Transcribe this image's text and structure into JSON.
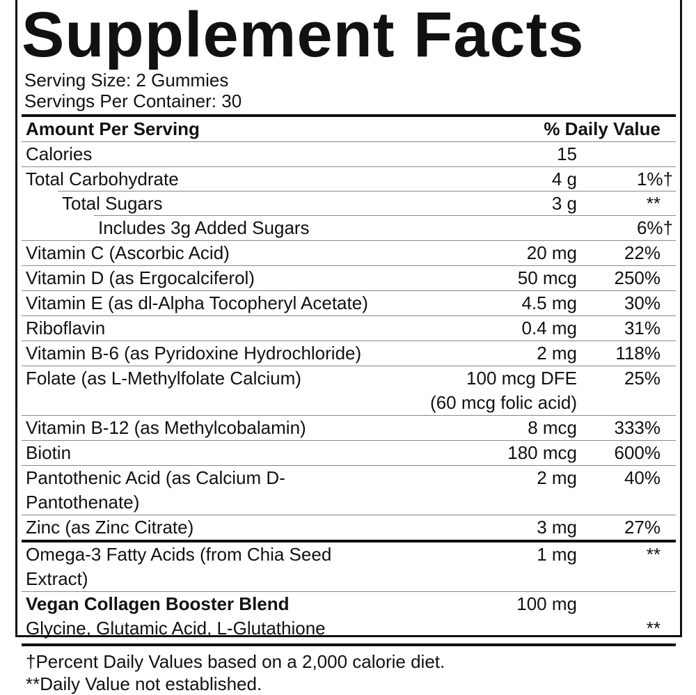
{
  "title": "Supplement Facts",
  "serving_size": "Serving Size: 2 Gummies",
  "servings_per_container": "Servings Per Container: 30",
  "header": {
    "amount": "Amount Per Serving",
    "dv": "% Daily Value"
  },
  "rows": [
    {
      "name": "Calories",
      "amount": "15"
    },
    {
      "name": "Total Carbohydrate",
      "amount": "4 g",
      "dv": "1%†"
    },
    {
      "name": "Total Sugars",
      "amount": "3 g",
      "dv": "**"
    },
    {
      "name": "Includes 3g Added Sugars",
      "dv": "6%†"
    },
    {
      "name": "Vitamin C (Ascorbic Acid)",
      "amount": "20 mg",
      "dv": "22%"
    },
    {
      "name": "Vitamin D (as Ergocalciferol)",
      "amount": "50 mcg",
      "dv": "250%"
    },
    {
      "name": "Vitamin E (as dl-Alpha Tocopheryl Acetate)",
      "amount": "4.5 mg",
      "dv": "30%"
    },
    {
      "name": "Riboflavin",
      "amount": "0.4 mg",
      "dv": "31%"
    },
    {
      "name": "Vitamin B-6 (as Pyridoxine Hydrochloride)",
      "amount": "2 mg",
      "dv": "118%"
    },
    {
      "name": "Folate (as L-Methylfolate Calcium)",
      "amount": "100 mcg DFE",
      "amount_note": "(60 mcg folic acid)",
      "dv": "25%"
    },
    {
      "name": "Vitamin B-12 (as Methylcobalamin)",
      "amount": "8 mcg",
      "dv": "333%"
    },
    {
      "name": "Biotin",
      "amount": "180 mcg",
      "dv": "600%"
    },
    {
      "name": "Pantothenic Acid (as Calcium D-Pantothenate)",
      "amount": "2 mg",
      "dv": "40%"
    },
    {
      "name": "Zinc (as Zinc Citrate)",
      "amount": "3 mg",
      "dv": "27%"
    },
    {
      "name": "Omega-3 Fatty Acids (from Chia Seed Extract)",
      "amount": "1 mg",
      "dv": "**"
    },
    {
      "name": "Vegan Collagen Booster Blend",
      "ingredients": "Glycine, Glutamic Acid, L-Glutathione",
      "amount": "100 mg",
      "dv": "**"
    }
  ],
  "footnotes": [
    "†Percent Daily Values based on a 2,000 calorie diet.",
    "**Daily Value not established."
  ]
}
